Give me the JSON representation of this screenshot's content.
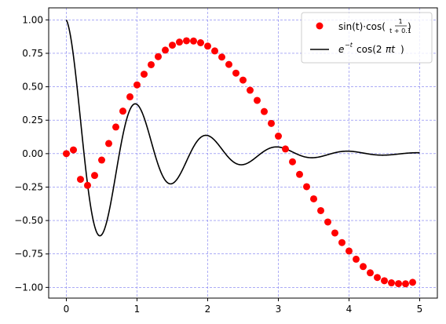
{
  "chart_data": {
    "type": "line",
    "title": "",
    "xlabel": "",
    "ylabel": "",
    "xlim": [
      -0.25,
      5.25
    ],
    "ylim": [
      -1.08,
      1.09
    ],
    "xticks": [
      0,
      1,
      2,
      3,
      4,
      5
    ],
    "xtick_labels": [
      "0",
      "1",
      "2",
      "3",
      "4",
      "5"
    ],
    "yticks": [
      -1.0,
      -0.75,
      -0.5,
      -0.25,
      0.0,
      0.25,
      0.5,
      0.75,
      1.0
    ],
    "ytick_labels": [
      "−1.00",
      "−0.75",
      "−0.50",
      "−0.25",
      "0.00",
      "0.25",
      "0.50",
      "0.75",
      "1.00"
    ],
    "grid": true,
    "grid_color": "#7b7bf0",
    "legend_position": "upper-right",
    "series": [
      {
        "name": "sin(t)·cos(1/(t+0.1))",
        "kind": "scatter",
        "color": "#ff0000",
        "x": [
          0.0,
          0.1,
          0.2,
          0.3,
          0.4,
          0.5,
          0.6,
          0.7,
          0.8,
          0.9,
          1.0,
          1.1,
          1.2,
          1.3,
          1.4,
          1.5,
          1.6,
          1.7,
          1.8,
          1.9,
          2.0,
          2.1,
          2.2,
          2.3,
          2.4,
          2.5,
          2.6,
          2.7,
          2.8,
          2.9,
          3.0,
          3.1,
          3.2,
          3.3,
          3.4,
          3.5,
          3.6,
          3.7,
          3.8,
          3.9,
          4.0,
          4.1,
          4.2,
          4.3,
          4.4,
          4.5,
          4.6,
          4.7,
          4.8,
          4.9
        ],
        "y": [
          0.0,
          0.028,
          -0.192,
          -0.237,
          -0.163,
          -0.048,
          0.076,
          0.199,
          0.318,
          0.425,
          0.514,
          0.594,
          0.665,
          0.725,
          0.774,
          0.811,
          0.834,
          0.844,
          0.842,
          0.829,
          0.804,
          0.768,
          0.722,
          0.667,
          0.602,
          0.55,
          0.474,
          0.398,
          0.315,
          0.226,
          0.131,
          0.035,
          -0.061,
          -0.155,
          -0.247,
          -0.338,
          -0.426,
          -0.511,
          -0.593,
          -0.665,
          -0.728,
          -0.789,
          -0.844,
          -0.891,
          -0.926,
          -0.95,
          -0.966,
          -0.972,
          -0.973,
          -0.962
        ]
      },
      {
        "name": "e^(−t)cos(2πt)",
        "kind": "line",
        "color": "#000000",
        "function": "exp(-t)*cos(2*pi*t)",
        "x_range": [
          0,
          5
        ]
      }
    ]
  },
  "legend": {
    "series_1": {
      "main": "sin(t)·cos(",
      "numerator": "1",
      "denominator": "t + 0.1",
      "close": ")"
    },
    "series_2": {
      "e": "e",
      "exponent": "−t",
      "cos": "cos(2",
      "pi": "πt",
      "close": ")"
    }
  },
  "colors": {
    "axis": "#000000",
    "background": "#ffffff"
  }
}
